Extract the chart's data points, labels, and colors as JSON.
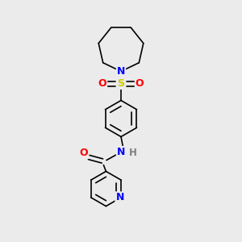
{
  "background_color": "#ebebeb",
  "atom_colors": {
    "N": "#0000ff",
    "O": "#ff0000",
    "S": "#cccc00",
    "C": "#000000",
    "H": "#7f7f7f"
  },
  "bond_color": "#000000",
  "bond_width": 1.2,
  "figsize": [
    3.0,
    3.0
  ],
  "dpi": 100,
  "xlim": [
    0,
    10
  ],
  "ylim": [
    0,
    10
  ]
}
